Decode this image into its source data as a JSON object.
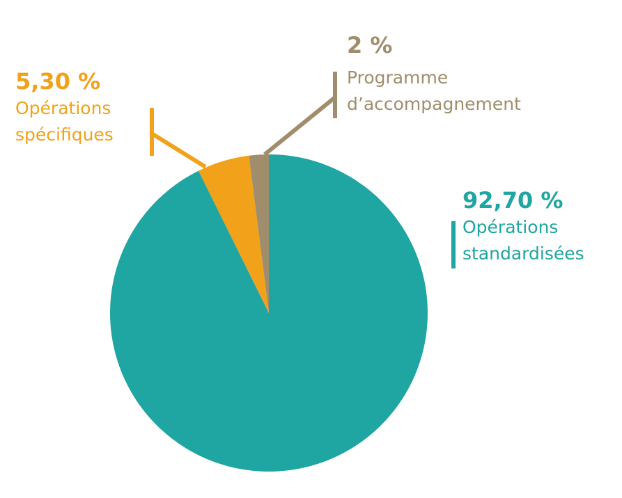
{
  "chart_data": {
    "type": "pie",
    "categories": [
      "Opérations standardisées",
      "Opérations spécifiques",
      "Programme d’accompagnement"
    ],
    "values": [
      92.7,
      5.3,
      2
    ],
    "value_labels": [
      "92,70 %",
      "5,30 %",
      "2 %"
    ],
    "colors": [
      "#1fa5a2",
      "#f2a11a",
      "#a08d6c"
    ]
  }
}
